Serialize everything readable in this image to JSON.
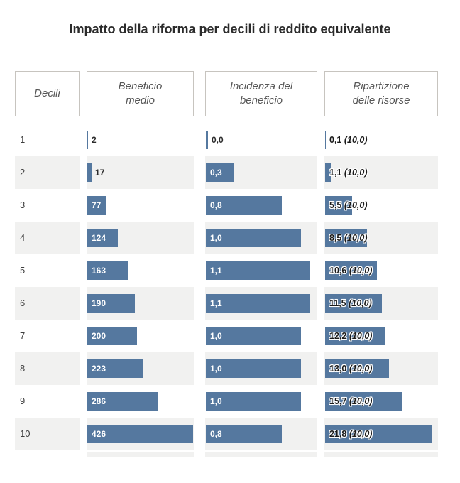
{
  "title": "Impatto della riforma per decili di reddito equivalente",
  "header": {
    "cells": [
      {
        "line1": "Decili",
        "line2": ""
      },
      {
        "line1": "Beneficio",
        "line2": "medio"
      },
      {
        "line1": "Incidenza del",
        "line2": "beneficio"
      },
      {
        "line1": "Ripartizione",
        "line2": "delle risorse"
      }
    ]
  },
  "colors": {
    "bar_fill": "#55789f",
    "row_alt_bg": "#f1f1f0",
    "header_border": "#c7c4bf",
    "title_text": "#2b2b2b",
    "header_text": "#575757",
    "label_on_bar": "#ffffff",
    "label_dark": "#1a1a1a"
  },
  "chart_data": {
    "type": "bar",
    "orientation": "horizontal",
    "title": "Impatto della riforma per decili di reddito equivalente",
    "category_label": "Decili",
    "categories": [
      "1",
      "2",
      "3",
      "4",
      "5",
      "6",
      "7",
      "8",
      "9",
      "10"
    ],
    "grid": "off",
    "legend": "none",
    "series": [
      {
        "name": "Beneficio medio",
        "values": [
          2,
          17,
          77,
          124,
          163,
          190,
          200,
          223,
          286,
          426
        ],
        "labels": [
          "2",
          "17",
          "77",
          "124",
          "163",
          "190",
          "200",
          "223",
          "286",
          "426"
        ],
        "axis_max": 426
      },
      {
        "name": "Incidenza del beneficio",
        "values": [
          0.0,
          0.3,
          0.8,
          1.0,
          1.1,
          1.1,
          1.0,
          1.0,
          1.0,
          0.8
        ],
        "labels": [
          "0,0",
          "0,3",
          "0,8",
          "1,0",
          "1,1",
          "1,1",
          "1,0",
          "1,0",
          "1,0",
          "0,8"
        ],
        "axis_max": 1.18
      },
      {
        "name": "Ripartizione delle risorse",
        "values": [
          0.1,
          1.1,
          5.5,
          8.5,
          10.6,
          11.5,
          12.2,
          13.0,
          15.7,
          21.8
        ],
        "labels": [
          "0,1",
          "1,1",
          "5,5",
          "8,5",
          "10,6",
          "11,5",
          "12,2",
          "13,0",
          "15,7",
          "21,8"
        ],
        "ref_labels": [
          "(10,0)",
          "(10,0)",
          "(10,0)",
          "(10,0)",
          "(10,0)",
          "(10,0)",
          "(10,0)",
          "(10,0)",
          "(10,0)",
          "(10,0)"
        ],
        "axis_max": 21.8
      }
    ]
  }
}
